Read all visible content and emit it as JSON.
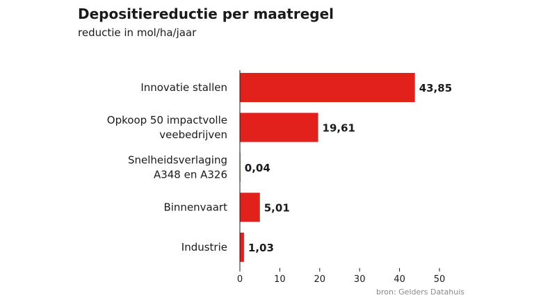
{
  "chart_data": {
    "type": "bar",
    "orientation": "horizontal",
    "title": "Depositiereductie per maatregel",
    "subtitle": "reductie in mol/ha/jaar",
    "categories": [
      [
        "Innovatie stallen"
      ],
      [
        "Opkoop 50 impactvolle",
        "veebedrijven"
      ],
      [
        "Snelheidsverlaging",
        "A348 en A326"
      ],
      [
        "Binnenvaart"
      ],
      [
        "Industrie"
      ]
    ],
    "values": [
      43.85,
      19.61,
      0.04,
      5.01,
      1.03
    ],
    "value_labels": [
      "43,85",
      "19,61",
      "0,04",
      "5,01",
      "1,03"
    ],
    "xlim": [
      0,
      50
    ],
    "xticks": [
      0,
      10,
      20,
      30,
      40,
      50
    ],
    "grid": false,
    "bar_color": "#e3211c"
  },
  "source": "bron: Gelders Datahuis"
}
